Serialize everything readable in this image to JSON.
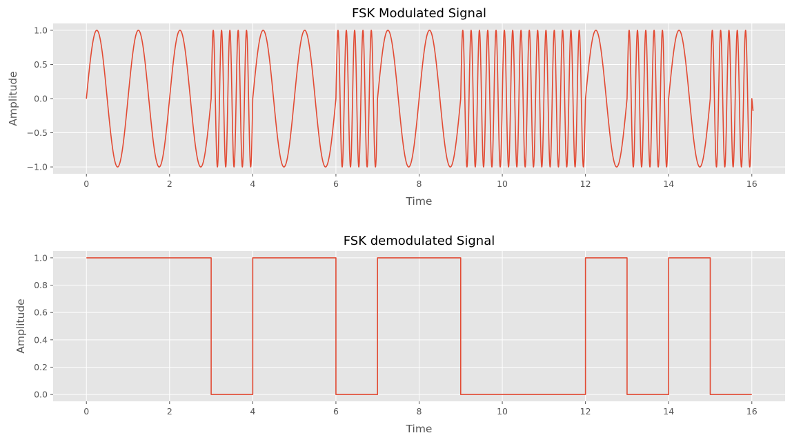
{
  "chart_data": [
    {
      "type": "line",
      "title": "FSK Modulated Signal",
      "xlabel": "Time",
      "ylabel": "Amplitude",
      "xlim": [
        -0.8,
        16.8
      ],
      "ylim": [
        -1.1,
        1.1
      ],
      "xticks": [
        "0",
        "2",
        "4",
        "6",
        "8",
        "10",
        "12",
        "14",
        "16"
      ],
      "yticks": [
        "−1.0",
        "−0.5",
        "0.0",
        "0.5",
        "1.0"
      ],
      "grid": true,
      "color": "#E24A33",
      "bits": [
        1,
        1,
        1,
        0,
        1,
        1,
        0,
        1,
        1,
        0,
        0,
        0,
        1,
        0,
        1,
        0
      ],
      "bit_duration": 1,
      "freq_bit1": 1,
      "freq_bit0": 5,
      "x_end": 16.03,
      "y_end": -0.18
    },
    {
      "type": "line",
      "title": "FSK demodulated Signal",
      "xlabel": "Time",
      "ylabel": "Amplitude",
      "xlim": [
        -0.8,
        16.8
      ],
      "ylim": [
        -0.05,
        1.05
      ],
      "xticks": [
        "0",
        "2",
        "4",
        "6",
        "8",
        "10",
        "12",
        "14",
        "16"
      ],
      "yticks": [
        "0.0",
        "0.2",
        "0.4",
        "0.6",
        "0.8",
        "1.0"
      ],
      "grid": true,
      "color": "#E24A33",
      "x": [
        0,
        3,
        3,
        4,
        4,
        6,
        6,
        7,
        7,
        9,
        9,
        12,
        12,
        13,
        13,
        14,
        14,
        15,
        15,
        16
      ],
      "y": [
        1,
        1,
        0,
        0,
        1,
        1,
        0,
        0,
        1,
        1,
        0,
        0,
        1,
        1,
        0,
        0,
        1,
        1,
        0,
        0
      ]
    }
  ]
}
